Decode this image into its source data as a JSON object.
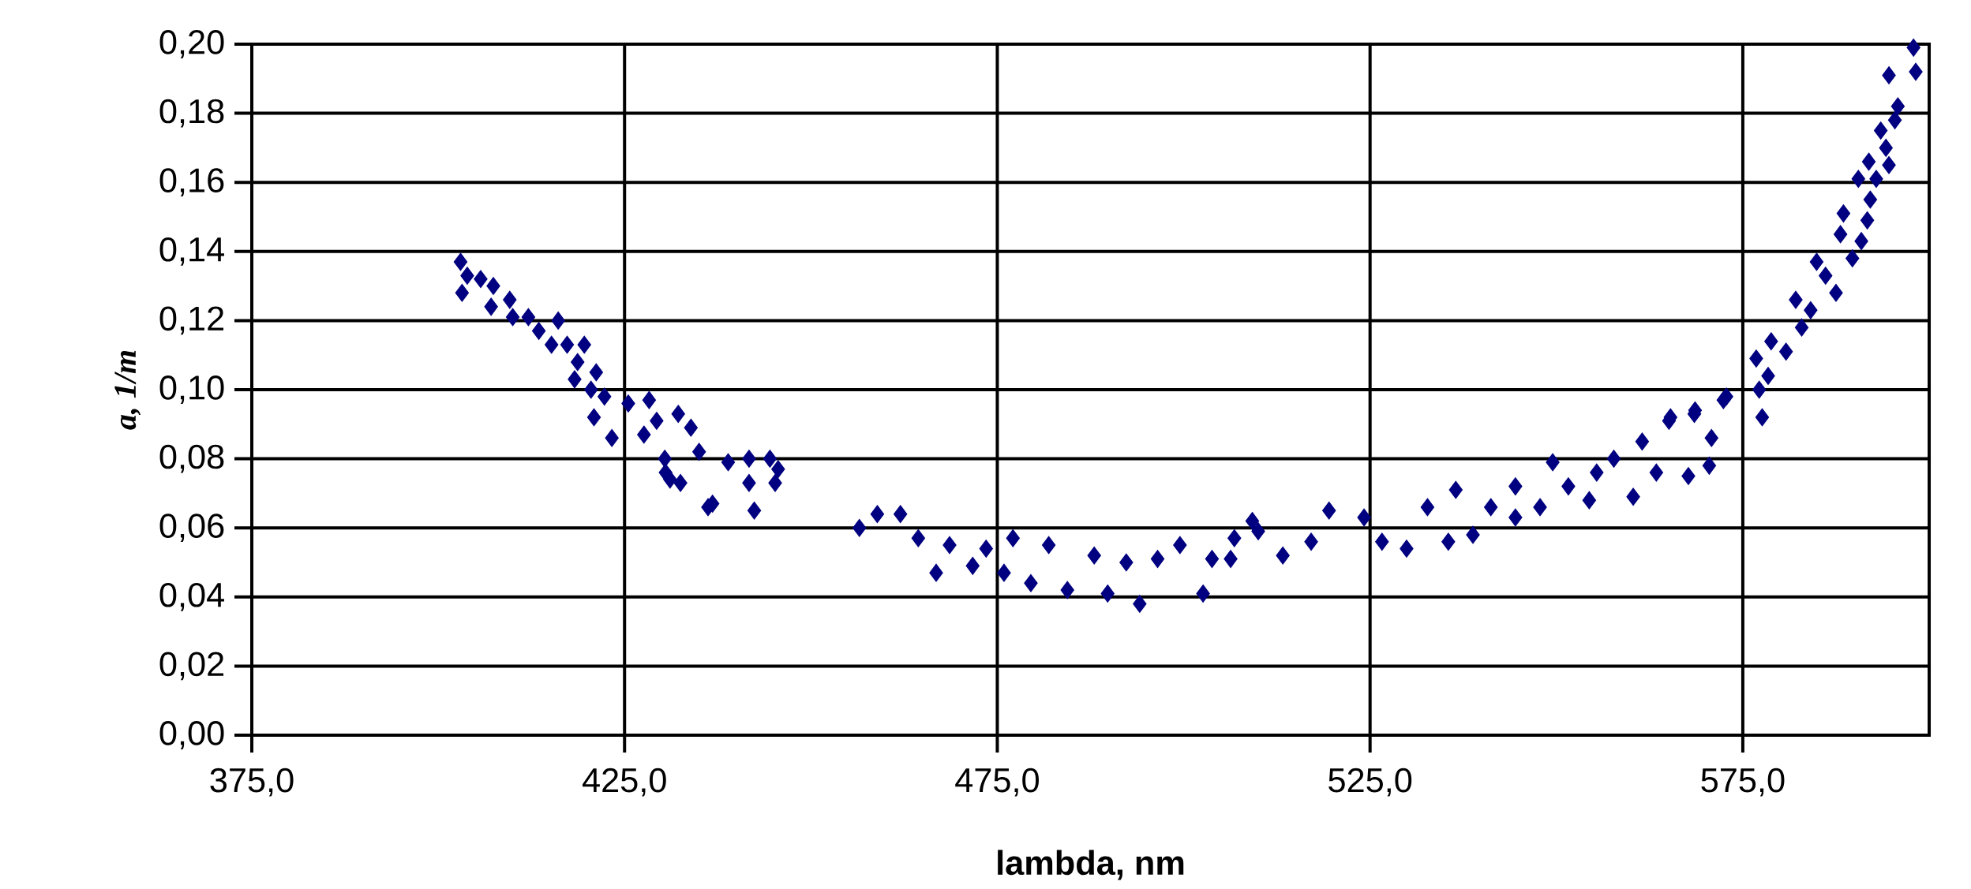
{
  "chart_data": {
    "type": "scatter",
    "xlabel": "lambda, nm",
    "ylabel": "*a, 1/m*",
    "xlim": [
      375,
      600
    ],
    "ylim": [
      0,
      0.2
    ],
    "xticks": [
      {
        "value": 375,
        "label": "375,0"
      },
      {
        "value": 425,
        "label": "425,0"
      },
      {
        "value": 475,
        "label": "475,0"
      },
      {
        "value": 525,
        "label": "525,0"
      },
      {
        "value": 575,
        "label": "575,0"
      }
    ],
    "yticks": [
      {
        "value": 0,
        "label": "0,00"
      },
      {
        "value": 0.02,
        "label": "0,02"
      },
      {
        "value": 0.04,
        "label": "0,04"
      },
      {
        "value": 0.06,
        "label": "0,06"
      },
      {
        "value": 0.08,
        "label": "0,08"
      },
      {
        "value": 0.1,
        "label": "0,10"
      },
      {
        "value": 0.12,
        "label": "0,12"
      },
      {
        "value": 0.14,
        "label": "0,14"
      },
      {
        "value": 0.16,
        "label": "0,16"
      },
      {
        "value": 0.18,
        "label": "0,18"
      },
      {
        "value": 0.2,
        "label": "0,20"
      }
    ],
    "grid": true,
    "marker": "diamond",
    "series": [
      {
        "color": "#000080",
        "x": [
          403.0,
          403.9,
          403.2,
          405.7,
          407.4,
          407.1,
          409.6,
          410.0,
          412.1,
          413.5,
          416.1,
          415.2,
          417.3,
          419.6,
          418.7,
          418.3,
          421.2,
          420.5,
          422.3,
          420.9,
          423.3,
          425.5,
          428.3,
          427.6,
          429.3,
          432.2,
          430.4,
          433.9,
          431.1,
          435.0,
          436.8,
          438.9,
          441.7,
          442.4,
          444.5,
          445.2,
          441.7,
          432.5,
          430.5,
          436.2,
          445.6,
          456.5,
          458.9,
          462.0,
          464.4,
          466.8,
          468.6,
          471.7,
          473.5,
          475.9,
          477.1,
          479.5,
          481.9,
          484.4,
          488.0,
          489.8,
          492.3,
          494.1,
          496.5,
          499.5,
          502.6,
          503.8,
          506.3,
          506.8,
          509.2,
          510.0,
          513.3,
          517.1,
          519.5,
          524.2,
          526.6,
          529.9,
          532.7,
          535.5,
          536.5,
          538.8,
          541.2,
          544.5,
          544.5,
          547.8,
          549.5,
          551.6,
          554.4,
          555.4,
          557.7,
          560.3,
          561.5,
          563.4,
          565.3,
          567.7,
          568.6,
          570.5,
          572.4,
          565.1,
          570.8,
          568.5,
          572.8,
          577.6,
          577.2,
          578.4,
          576.8,
          580.8,
          578.8,
          582.9,
          584.1,
          582.1,
          587.5,
          586.1,
          584.9,
          589.7,
          590.9,
          588.1,
          591.7,
          588.5,
          592.1,
          592.9,
          590.5,
          594.6,
          591.9,
          594.2,
          593.5,
          595.4,
          595.8,
          598.2,
          594.6,
          597.9
        ],
        "values": [
          0.137,
          0.133,
          0.128,
          0.132,
          0.13,
          0.124,
          0.126,
          0.121,
          0.121,
          0.117,
          0.12,
          0.113,
          0.113,
          0.113,
          0.108,
          0.103,
          0.105,
          0.1,
          0.098,
          0.092,
          0.086,
          0.096,
          0.097,
          0.087,
          0.091,
          0.093,
          0.08,
          0.089,
          0.074,
          0.082,
          0.067,
          0.079,
          0.08,
          0.065,
          0.08,
          0.073,
          0.073,
          0.073,
          0.076,
          0.066,
          0.077,
          0.06,
          0.064,
          0.064,
          0.057,
          0.047,
          0.055,
          0.049,
          0.054,
          0.047,
          0.057,
          0.044,
          0.055,
          0.042,
          0.052,
          0.041,
          0.05,
          0.038,
          0.051,
          0.055,
          0.041,
          0.051,
          0.051,
          0.057,
          0.062,
          0.059,
          0.052,
          0.056,
          0.065,
          0.063,
          0.056,
          0.054,
          0.066,
          0.056,
          0.071,
          0.058,
          0.066,
          0.072,
          0.063,
          0.066,
          0.079,
          0.072,
          0.068,
          0.076,
          0.08,
          0.069,
          0.085,
          0.076,
          0.092,
          0.075,
          0.094,
          0.078,
          0.097,
          0.091,
          0.086,
          0.093,
          0.098,
          0.092,
          0.1,
          0.104,
          0.109,
          0.111,
          0.114,
          0.118,
          0.123,
          0.126,
          0.128,
          0.133,
          0.137,
          0.138,
          0.143,
          0.145,
          0.149,
          0.151,
          0.155,
          0.161,
          0.161,
          0.165,
          0.166,
          0.17,
          0.175,
          0.178,
          0.182,
          0.192,
          0.191,
          0.199
        ]
      }
    ]
  }
}
